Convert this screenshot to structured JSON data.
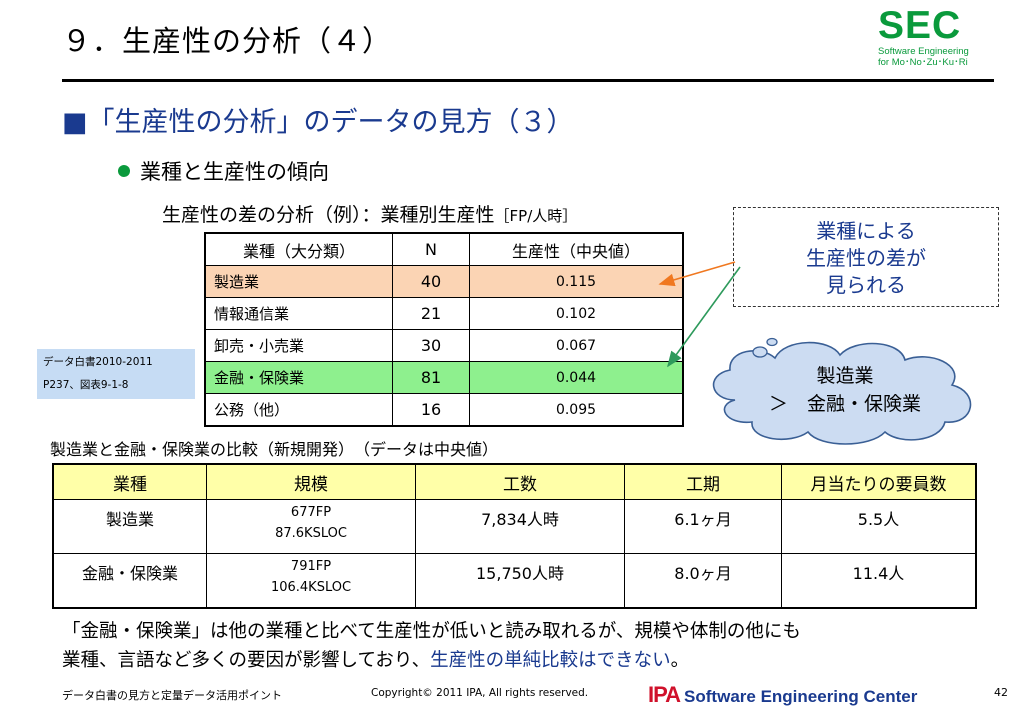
{
  "slide": {
    "title": "９．生産性の分析（４）",
    "logo": {
      "main": "SEC",
      "line1": "Software Engineering",
      "line2": "for Mo･No･Zu･Ku･Ri"
    },
    "heading_marker": "■",
    "heading": "「生産性の分析」のデータの見方（３）",
    "bullet": "業種と生産性の傾向",
    "caption": "生産性の差の分析（例）：業種別生産性",
    "caption_unit": "［FP/人時］"
  },
  "table1": {
    "headers": [
      "業種（大分類）",
      "N",
      "生産性（中央値）"
    ],
    "rows": [
      [
        "製造業",
        "40",
        "0.115"
      ],
      [
        "情報通信業",
        "21",
        "0.102"
      ],
      [
        "卸売・小売業",
        "30",
        "0.067"
      ],
      [
        "金融・保険業",
        "81",
        "0.044"
      ],
      [
        "公務（他）",
        "16",
        "0.095"
      ]
    ]
  },
  "source_note": {
    "line1": "データ白書2010-2011",
    "line2": "P237、図表9-1-8"
  },
  "callout": {
    "line1": "業種による",
    "line2": "生産性の差が",
    "line3": "見られる"
  },
  "cloud": {
    "line1": "製造業",
    "line2": "＞　金融・保険業"
  },
  "table2": {
    "caption": "製造業と金融・保険業の比較（新規開発）　（データは中央値）",
    "headers": [
      "業種",
      "規模",
      "工数",
      "工期",
      "月当たりの要員数"
    ],
    "rows": [
      {
        "industry": "製造業",
        "scale1": "677FP",
        "scale2": "87.6KSLOC",
        "effort": "7,834人時",
        "period": "6.1ヶ月",
        "staff": "5.5人"
      },
      {
        "industry": "金融・保険業",
        "scale1": "791FP",
        "scale2": "106.4KSLOC",
        "effort": "15,750人時",
        "period": "8.0ヶ月",
        "staff": "11.4人"
      }
    ]
  },
  "summary": {
    "line1": "「金融・保険業」は他の業種と比べて生産性が低いと読み取れるが、規模や体制の他にも",
    "line2a": "業種、言語など多くの要因が影響しており、",
    "line2b": "生産性の単純比較はできない",
    "line2c": "。"
  },
  "footer": {
    "left": "データ白書の見方と定量データ活用ポイント",
    "copyright": "Copyright© 2011 IPA, All rights reserved.",
    "ipa": "IPA",
    "org": "Software Engineering Center",
    "page": "42"
  },
  "colors": {
    "accent_blue": "#1a3a8f",
    "sec_green": "#0a9a3c",
    "ipa_red": "#d0112b",
    "mfg_row": "#fbd4b4",
    "fin_row": "#8ef08e",
    "header_yellow": "#ffffa8"
  }
}
